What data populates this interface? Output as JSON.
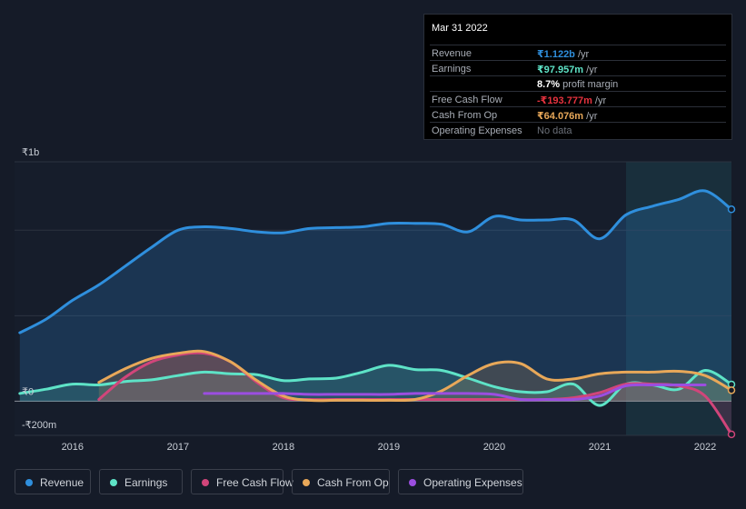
{
  "tooltip": {
    "date": "Mar 31 2022",
    "rows": [
      {
        "label": "Revenue",
        "value": "₹1.122b",
        "unit": " /yr",
        "color": "#2f8fdd"
      },
      {
        "label": "Earnings",
        "value": "₹97.957m",
        "unit": " /yr",
        "color": "#5ee3c7"
      },
      {
        "label": "",
        "value": "8.7%",
        "unit": " profit margin",
        "color": "#ffffff"
      },
      {
        "label": "Free Cash Flow",
        "value": "-₹193.777m",
        "unit": " /yr",
        "color": "#e5323e"
      },
      {
        "label": "Cash From Op",
        "value": "₹64.076m",
        "unit": " /yr",
        "color": "#e8a859"
      },
      {
        "label": "Operating Expenses",
        "value": "No data",
        "unit": "",
        "color": "#6b7079"
      }
    ]
  },
  "legend": [
    {
      "label": "Revenue",
      "color": "#2f8fdd"
    },
    {
      "label": "Earnings",
      "color": "#5ee3c7"
    },
    {
      "label": "Free Cash Flow",
      "color": "#d1457a"
    },
    {
      "label": "Cash From Op",
      "color": "#e8a859"
    },
    {
      "label": "Operating Expenses",
      "color": "#9b4ee0"
    }
  ],
  "chart_data": {
    "type": "area",
    "y_tick_labels": [
      "₹1b",
      "₹0",
      "-₹200m"
    ],
    "ylim": [
      -200,
      1400
    ],
    "x_tick_labels": [
      "2016",
      "2017",
      "2018",
      "2019",
      "2020",
      "2021",
      "2022"
    ],
    "xlim": [
      2015.45,
      2022.25
    ],
    "highlight_start": 2021.25,
    "units": "₹ millions",
    "series": [
      {
        "name": "Revenue",
        "color": "#2f8fdd",
        "fill": true,
        "x": [
          2015.5,
          2015.75,
          2016.0,
          2016.25,
          2016.5,
          2016.75,
          2017.0,
          2017.25,
          2017.5,
          2017.75,
          2018.0,
          2018.25,
          2018.5,
          2018.75,
          2019.0,
          2019.25,
          2019.5,
          2019.75,
          2020.0,
          2020.25,
          2020.5,
          2020.75,
          2021.0,
          2021.25,
          2021.5,
          2021.75,
          2022.0,
          2022.25
        ],
        "y": [
          400,
          480,
          590,
          680,
          790,
          900,
          1000,
          1020,
          1010,
          990,
          985,
          1010,
          1015,
          1020,
          1040,
          1040,
          1035,
          990,
          1080,
          1060,
          1060,
          1060,
          950,
          1090,
          1140,
          1180,
          1230,
          1122
        ]
      },
      {
        "name": "Earnings",
        "color": "#5ee3c7",
        "fill": true,
        "x": [
          2015.5,
          2015.75,
          2016.0,
          2016.25,
          2016.5,
          2016.75,
          2017.0,
          2017.25,
          2017.5,
          2017.75,
          2018.0,
          2018.25,
          2018.5,
          2018.75,
          2019.0,
          2019.25,
          2019.5,
          2019.75,
          2020.0,
          2020.25,
          2020.5,
          2020.75,
          2021.0,
          2021.25,
          2021.5,
          2021.75,
          2022.0,
          2022.25
        ],
        "y": [
          45,
          70,
          100,
          95,
          115,
          125,
          150,
          170,
          160,
          155,
          120,
          130,
          135,
          170,
          210,
          185,
          180,
          135,
          85,
          55,
          55,
          100,
          -25,
          100,
          95,
          70,
          180,
          98
        ]
      },
      {
        "name": "Free Cash Flow",
        "color": "#d1457a",
        "fill": true,
        "x": [
          2016.25,
          2016.5,
          2016.75,
          2017.0,
          2017.25,
          2017.5,
          2017.75,
          2018.0,
          2018.25,
          2018.5,
          2018.75,
          2019.0,
          2019.25,
          2019.5,
          2019.75,
          2020.0,
          2020.25,
          2020.5,
          2020.75,
          2021.0,
          2021.25,
          2021.5,
          2021.75,
          2022.0,
          2022.25
        ],
        "y": [
          10,
          140,
          230,
          270,
          280,
          230,
          110,
          20,
          10,
          10,
          10,
          10,
          10,
          10,
          10,
          10,
          10,
          10,
          20,
          50,
          100,
          100,
          90,
          30,
          -194
        ]
      },
      {
        "name": "Cash From Op",
        "color": "#e8a859",
        "fill": true,
        "x": [
          2016.25,
          2016.5,
          2016.75,
          2017.0,
          2017.25,
          2017.5,
          2017.75,
          2018.0,
          2018.25,
          2018.5,
          2018.75,
          2019.0,
          2019.25,
          2019.5,
          2019.75,
          2020.0,
          2020.25,
          2020.5,
          2020.75,
          2021.0,
          2021.25,
          2021.5,
          2021.75,
          2022.0,
          2022.25
        ],
        "y": [
          110,
          190,
          250,
          280,
          290,
          230,
          120,
          30,
          5,
          5,
          5,
          5,
          10,
          60,
          150,
          220,
          220,
          130,
          130,
          160,
          170,
          170,
          175,
          150,
          64
        ]
      },
      {
        "name": "Operating Expenses",
        "color": "#9b4ee0",
        "fill": false,
        "x": [
          2017.25,
          2017.5,
          2017.75,
          2018.0,
          2018.25,
          2018.5,
          2018.75,
          2019.0,
          2019.25,
          2019.5,
          2019.75,
          2020.0,
          2020.25,
          2020.5,
          2020.75,
          2021.0,
          2021.25,
          2021.5,
          2021.75,
          2022.0
        ],
        "y": [
          45,
          45,
          45,
          45,
          40,
          40,
          40,
          40,
          45,
          45,
          45,
          40,
          10,
          10,
          10,
          30,
          90,
          95,
          95,
          95
        ]
      }
    ]
  }
}
